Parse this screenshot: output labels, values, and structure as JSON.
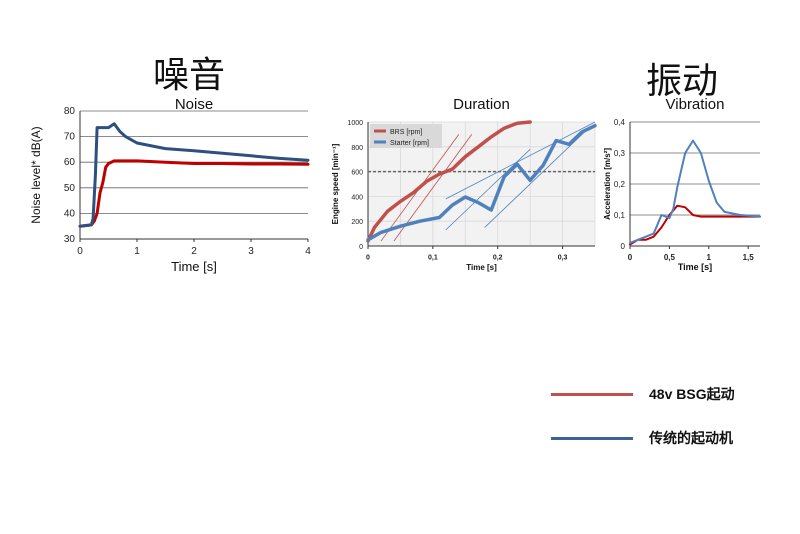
{
  "headings": {
    "noise": "噪音",
    "vibration": "振动"
  },
  "legend": [
    {
      "label": "48v BSG起动",
      "color": "#c0504d"
    },
    {
      "label": "传统的起动机",
      "color": "#3d6199"
    }
  ],
  "chart_data": [
    {
      "type": "line",
      "title": "Noise",
      "xlabel": "Time [s]",
      "ylabel": "Noise level* dB(A)",
      "xlim": [
        0,
        4
      ],
      "ylim": [
        30,
        80
      ],
      "xticks": [
        "0",
        "1",
        "2",
        "3",
        "4"
      ],
      "yticks": [
        "30",
        "40",
        "50",
        "60",
        "70",
        "80"
      ],
      "grid": true,
      "series": [
        {
          "color": "#c00000",
          "x": [
            0,
            0.2,
            0.25,
            0.3,
            0.35,
            0.4,
            0.45,
            0.5,
            0.6,
            0.8,
            1.0,
            1.5,
            2.0,
            2.5,
            3.0,
            3.5,
            4.0
          ],
          "y": [
            35,
            35.5,
            37,
            40,
            48,
            52,
            58,
            59.5,
            60.5,
            60.5,
            60.5,
            60,
            59.5,
            59.5,
            59.3,
            59.3,
            59.2
          ]
        },
        {
          "color": "#2e4f7f",
          "x": [
            0,
            0.2,
            0.23,
            0.27,
            0.3,
            0.4,
            0.5,
            0.6,
            0.7,
            0.8,
            1.0,
            1.5,
            2.0,
            2.5,
            3.0,
            3.5,
            4.0
          ],
          "y": [
            35,
            35.5,
            38,
            55,
            73.5,
            73.5,
            73.5,
            75,
            72,
            70,
            67.5,
            65.3,
            64.5,
            63.5,
            62.5,
            61.5,
            60.8
          ]
        }
      ]
    },
    {
      "type": "line",
      "title": "Duration",
      "xlabel": "Time  [s]",
      "ylabel": "Engine speed  [min⁻¹]",
      "xlim": [
        0,
        0.35
      ],
      "ylim": [
        0,
        1000
      ],
      "xticks": [
        "0",
        "0,1",
        "0,2",
        "0,3"
      ],
      "yticks": [
        "0",
        "200",
        "400",
        "600",
        "800",
        "1000"
      ],
      "grid": true,
      "reference_line_y": 600,
      "legend_position": "top-left",
      "series": [
        {
          "name": "BRS [rpm]",
          "color": "#c0504d",
          "x": [
            0,
            0.01,
            0.03,
            0.05,
            0.07,
            0.09,
            0.11,
            0.13,
            0.15,
            0.17,
            0.19,
            0.21,
            0.23,
            0.25
          ],
          "y": [
            40,
            150,
            280,
            360,
            430,
            520,
            580,
            620,
            720,
            800,
            880,
            950,
            990,
            1000
          ]
        },
        {
          "name": "Starter [rpm]",
          "color": "#4f81bd",
          "x": [
            0,
            0.02,
            0.05,
            0.08,
            0.11,
            0.13,
            0.15,
            0.17,
            0.19,
            0.21,
            0.23,
            0.25,
            0.27,
            0.29,
            0.31,
            0.33,
            0.35
          ],
          "y": [
            50,
            110,
            160,
            200,
            230,
            330,
            395,
            350,
            290,
            560,
            660,
            530,
            650,
            850,
            820,
            920,
            970
          ]
        }
      ]
    },
    {
      "type": "line",
      "title": "Vibration",
      "xlabel": "Time [s]",
      "ylabel": "Acceleration [m/s²]",
      "xlim": [
        0,
        1.65
      ],
      "ylim": [
        0,
        0.4
      ],
      "xticks": [
        "0",
        "0,5",
        "1",
        "1,5"
      ],
      "yticks": [
        "0",
        "0,1",
        "0,2",
        "0,3",
        "0,4"
      ],
      "grid": true,
      "series": [
        {
          "color": "#c00000",
          "x": [
            0,
            0.1,
            0.2,
            0.3,
            0.4,
            0.5,
            0.6,
            0.7,
            0.8,
            0.9,
            1.0,
            1.2,
            1.4,
            1.65
          ],
          "y": [
            0.005,
            0.02,
            0.02,
            0.03,
            0.06,
            0.1,
            0.13,
            0.125,
            0.1,
            0.095,
            0.095,
            0.095,
            0.095,
            0.095
          ]
        },
        {
          "color": "#4f81bd",
          "x": [
            0,
            0.1,
            0.2,
            0.3,
            0.35,
            0.4,
            0.5,
            0.55,
            0.6,
            0.7,
            0.8,
            0.9,
            1.0,
            1.1,
            1.2,
            1.4,
            1.65
          ],
          "y": [
            0.01,
            0.02,
            0.03,
            0.04,
            0.07,
            0.1,
            0.09,
            0.12,
            0.19,
            0.3,
            0.34,
            0.3,
            0.21,
            0.14,
            0.11,
            0.1,
            0.095
          ]
        }
      ]
    }
  ]
}
